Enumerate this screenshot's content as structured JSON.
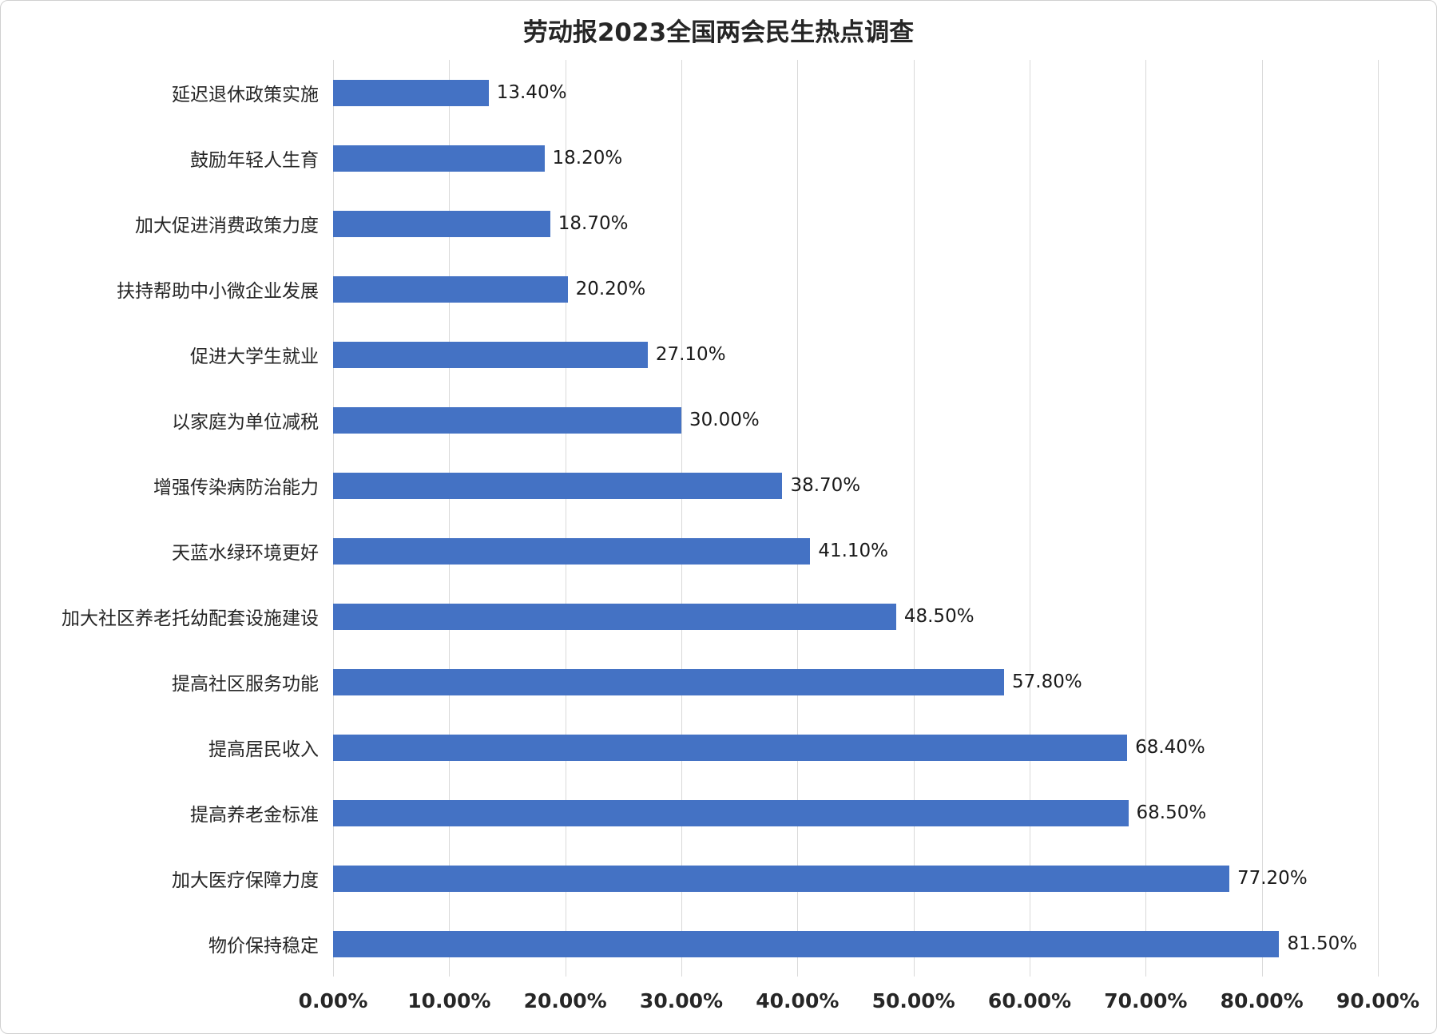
{
  "chart_data": {
    "type": "bar",
    "orientation": "horizontal",
    "title": "劳动报2023全国两会民生热点调查",
    "categories": [
      "延迟退休政策实施",
      "鼓励年轻人生育",
      "加大促进消费政策力度",
      "扶持帮助中小微企业发展",
      "促进大学生就业",
      "以家庭为单位减税",
      "增强传染病防治能力",
      "天蓝水绿环境更好",
      "加大社区养老托幼配套设施建设",
      "提高社区服务功能",
      "提高居民收入",
      "提高养老金标准",
      "加大医疗保障力度",
      "物价保持稳定"
    ],
    "values": [
      13.4,
      18.2,
      18.7,
      20.2,
      27.1,
      30.0,
      38.7,
      41.1,
      48.5,
      57.8,
      68.4,
      68.5,
      77.2,
      81.5
    ],
    "value_labels": [
      "13.40%",
      "18.20%",
      "18.70%",
      "20.20%",
      "27.10%",
      "30.00%",
      "38.70%",
      "41.10%",
      "48.50%",
      "57.80%",
      "68.40%",
      "68.50%",
      "77.20%",
      "81.50%"
    ],
    "xlim": [
      0,
      90
    ],
    "x_tick_step": 10,
    "x_tick_labels": [
      "0.00%",
      "10.00%",
      "20.00%",
      "30.00%",
      "40.00%",
      "50.00%",
      "60.00%",
      "70.00%",
      "80.00%",
      "90.00%"
    ],
    "bar_color": "#4472C4",
    "grid_color": "#d9d9d9",
    "grid": true,
    "legend": false
  }
}
